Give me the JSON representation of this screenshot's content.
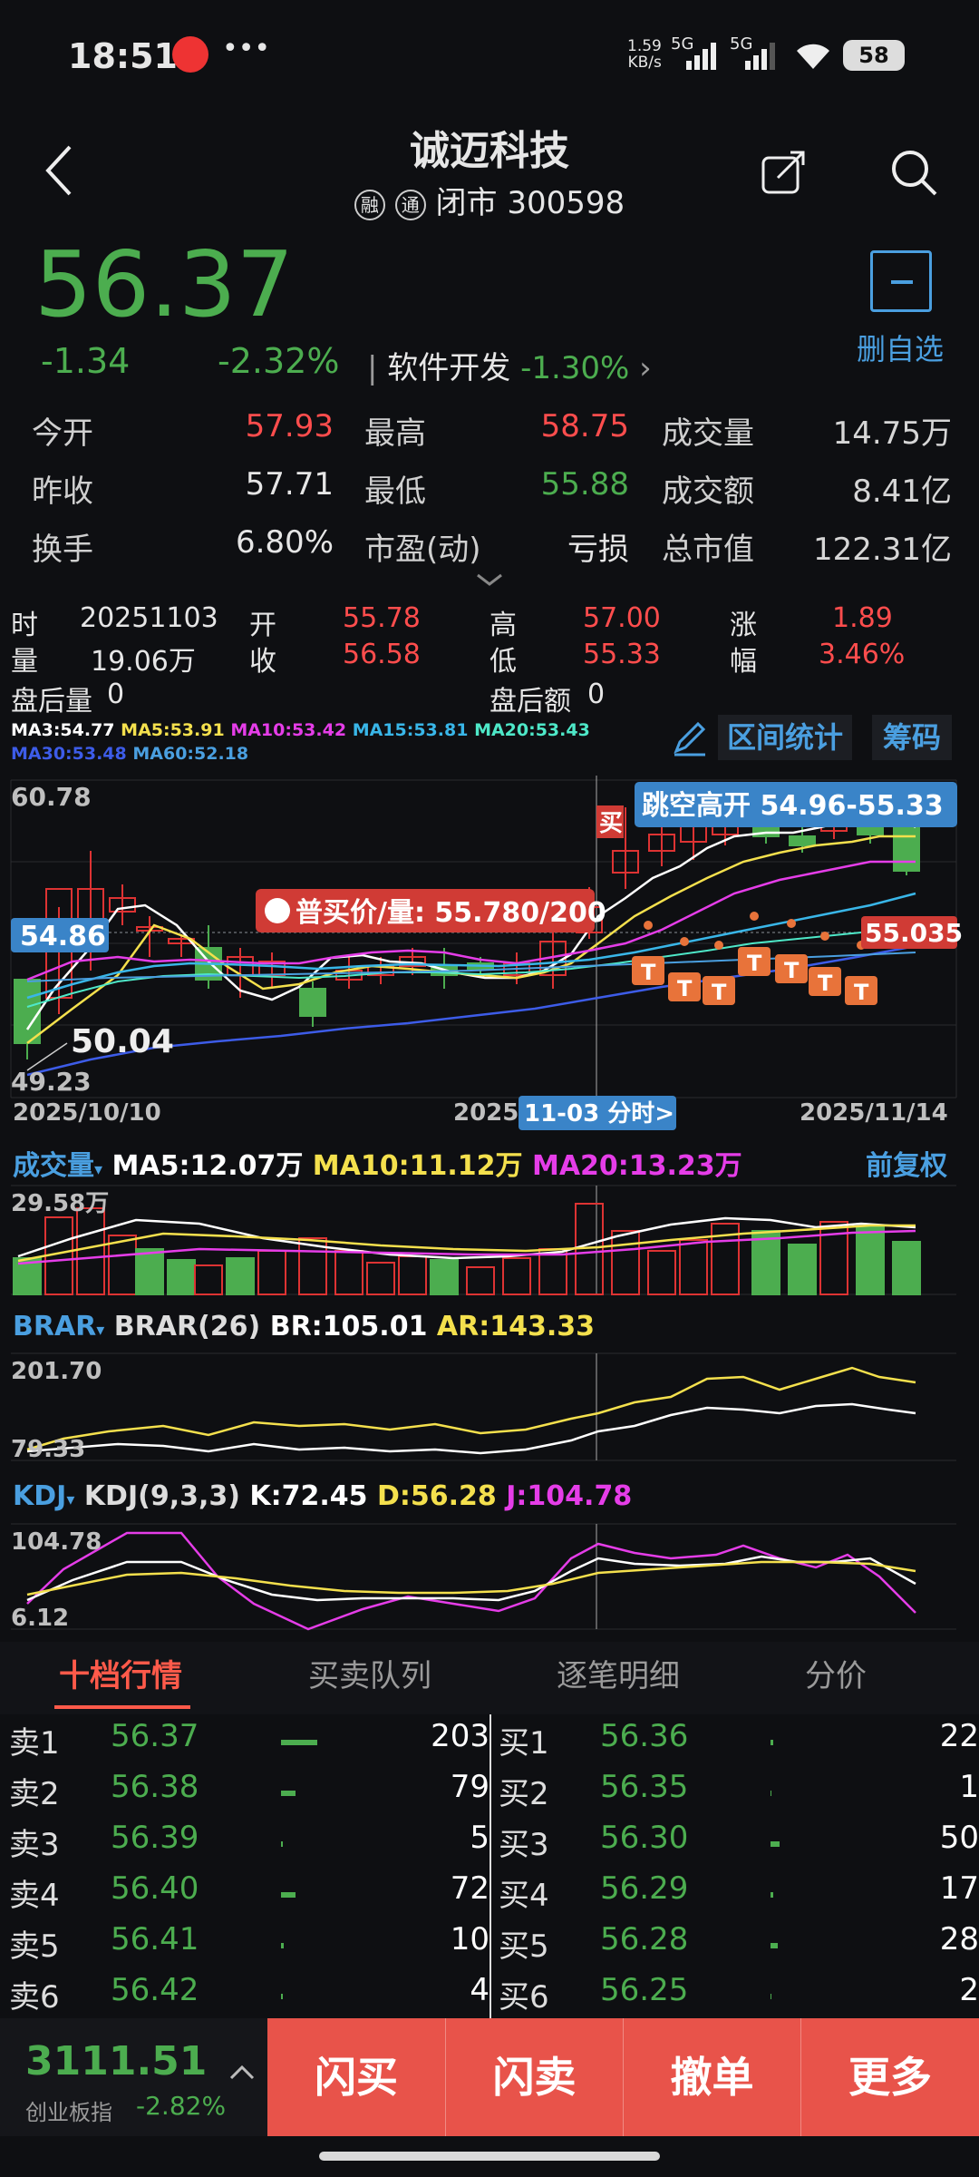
{
  "status": {
    "time": "18:51",
    "net_speed": "1.59",
    "net_unit": "KB/s",
    "sig1": "5G",
    "sig2": "5G",
    "battery": "58",
    "dots": "•••"
  },
  "header": {
    "title": "诚迈科技",
    "badge1": "融",
    "badge2": "通",
    "market_status": "闭市",
    "code": "300598"
  },
  "quote": {
    "price": "56.37",
    "change": "-1.34",
    "change_pct": "-2.32%",
    "sector": "软件开发",
    "sector_pct": "-1.30%",
    "fav_label": "删自选",
    "stats": [
      [
        "今开",
        "57.93",
        "最高",
        "58.75",
        "成交量",
        "14.75万"
      ],
      [
        "昨收",
        "57.71",
        "最低",
        "55.88",
        "成交额",
        "8.41亿"
      ],
      [
        "换手",
        "6.80%",
        "市盈(动)",
        "亏损",
        "总市值",
        "122.31亿"
      ]
    ]
  },
  "day": {
    "date_lbl": "时",
    "date": "20251103",
    "open_lbl": "开",
    "open": "55.78",
    "high_lbl": "高",
    "high": "57.00",
    "chg_lbl": "涨",
    "chg": "1.89",
    "vol_lbl": "量",
    "vol": "19.06万",
    "close_lbl": "收",
    "close": "56.58",
    "low_lbl": "低",
    "low": "55.33",
    "pct_lbl": "幅",
    "pct": "3.46%",
    "ah_vol_lbl": "盘后量",
    "ah_vol": "0",
    "ah_amt_lbl": "盘后额",
    "ah_amt": "0"
  },
  "ma": {
    "ma3": "MA3:54.77",
    "ma5": "MA5:53.91",
    "ma10": "MA10:53.42",
    "ma15": "MA15:53.81",
    "ma20": "MA20:53.43",
    "ma30": "MA30:53.48",
    "ma60": "MA60:52.18",
    "range_btn": "区间统计",
    "chip_btn": "筹码"
  },
  "kline": {
    "y_top": "60.78",
    "y_bot": "49.23",
    "left_price": "54.86",
    "min_label": "50.04",
    "date_start": "2025/10/10",
    "date_mid_prefix": "2025/",
    "date_mid": "11-03 分时>",
    "date_end": "2025/11/14",
    "gap_label": "跳空高开 54.96-55.33",
    "buy_tag": "买",
    "bid_label": "普买价/量: 55.780/200",
    "right_price": "55.035",
    "t_mark": "T"
  },
  "vol": {
    "label": "成交量",
    "ma5": "MA5:12.07万",
    "ma10": "MA10:11.12万",
    "ma20": "MA20:13.23万",
    "fq": "前复权",
    "y_top": "29.58万"
  },
  "brar": {
    "label": "BRAR",
    "params": "BRAR(26)",
    "br": "BR:105.01",
    "ar": "AR:143.33",
    "y_top": "201.70",
    "y_bot": "79.33"
  },
  "kdj": {
    "label": "KDJ",
    "params": "KDJ(9,3,3)",
    "k": "K:72.45",
    "d": "D:56.28",
    "j": "J:104.78",
    "y_top": "104.78",
    "y_bot": "6.12"
  },
  "tabs": [
    "十档行情",
    "买卖队列",
    "逐笔明细",
    "分价"
  ],
  "asks": [
    [
      "卖1",
      "56.37",
      "203"
    ],
    [
      "卖2",
      "56.38",
      "79"
    ],
    [
      "卖3",
      "56.39",
      "5"
    ],
    [
      "卖4",
      "56.40",
      "72"
    ],
    [
      "卖5",
      "56.41",
      "10"
    ],
    [
      "卖6",
      "56.42",
      "4"
    ]
  ],
  "bids": [
    [
      "买1",
      "56.36",
      "22"
    ],
    [
      "买2",
      "56.35",
      "1"
    ],
    [
      "买3",
      "56.30",
      "50"
    ],
    [
      "买4",
      "56.29",
      "17"
    ],
    [
      "买5",
      "56.28",
      "28"
    ],
    [
      "买6",
      "56.25",
      "2"
    ]
  ],
  "index": {
    "value": "3111.51",
    "name": "创业板指",
    "pct": "-2.82%"
  },
  "actions": [
    "闪买",
    "闪卖",
    "撤单",
    "更多"
  ],
  "colors": {
    "up": "#ff4d4d",
    "down": "#4cad4f",
    "accent": "#4a9fe0",
    "button": "#e8534a"
  }
}
